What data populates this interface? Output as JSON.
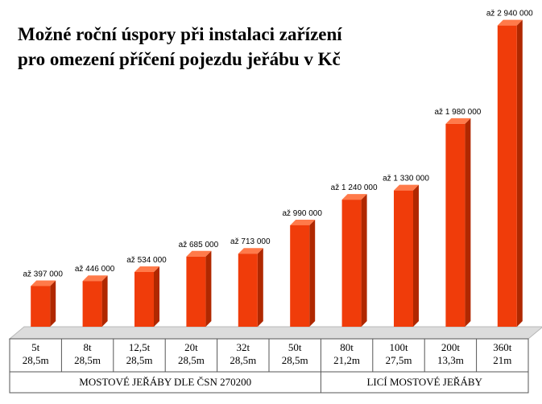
{
  "chart_data": {
    "type": "bar",
    "title_lines": [
      "Možné roční úspory při instalaci zařízení",
      "pro omezení příčení  pojezdu jeřábu v Kč"
    ],
    "categories": [
      [
        "5t",
        "28,5m"
      ],
      [
        "8t",
        "28,5m"
      ],
      [
        "12,5t",
        "28,5m"
      ],
      [
        "20t",
        "28,5m"
      ],
      [
        "32t",
        "28,5m"
      ],
      [
        "50t",
        "28,5m"
      ],
      [
        "80t",
        "21,2m"
      ],
      [
        "100t",
        "27,5m"
      ],
      [
        "200t",
        "13,3m"
      ],
      [
        "360t",
        "21m"
      ]
    ],
    "values": [
      397000,
      446000,
      534000,
      685000,
      713000,
      990000,
      1240000,
      1330000,
      1980000,
      2940000
    ],
    "data_labels": [
      "až 397 000",
      "až 446 000",
      "až 534 000",
      "až 685 000",
      "až 713 000",
      "až 990 000",
      "až 1 240 000",
      "až 1 330 000",
      "až 1 980 000",
      "až 2 940 000"
    ],
    "groups": [
      {
        "label": "MOSTOVÉ JEŘÁBY DLE ČSN 270200",
        "count": 6
      },
      {
        "label": "LICÍ MOSTOVÉ JEŘÁBY",
        "count": 4
      }
    ],
    "ylim": [
      0,
      3000000
    ],
    "grid": false,
    "legend": "none",
    "colors": {
      "bar_front": "#f03c0a",
      "bar_side": "#b02800",
      "bar_top": "#ff7a4a",
      "floor": "#dcdcdc",
      "border": "#555555"
    }
  }
}
